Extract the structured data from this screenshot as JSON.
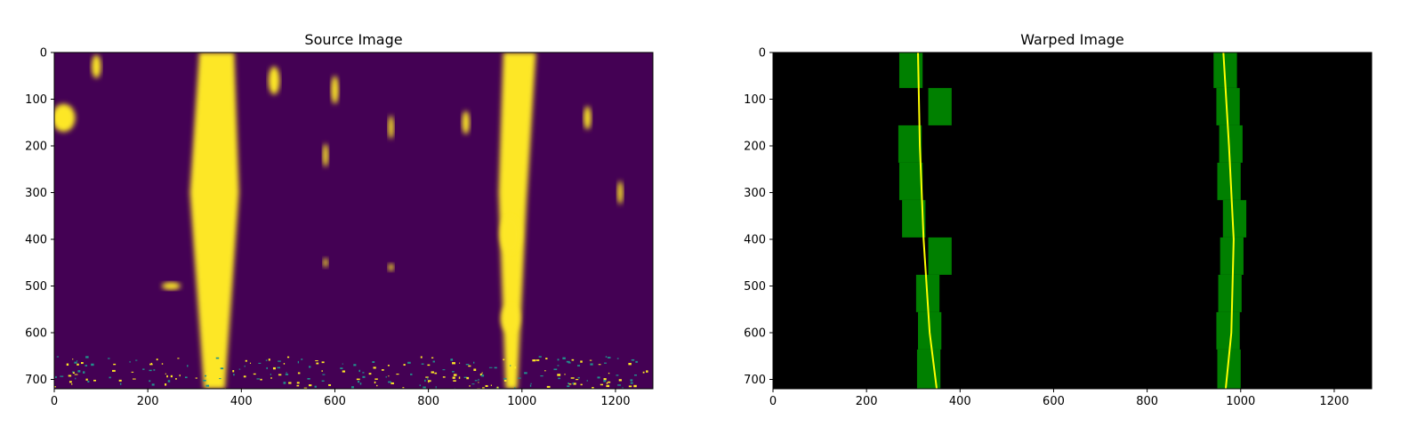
{
  "figure": {
    "background": "#ffffff"
  },
  "chart_data": [
    {
      "type": "heatmap",
      "title": "Source Image",
      "xlabel": "",
      "ylabel": "",
      "xlim": [
        0,
        1280
      ],
      "ylim": [
        720,
        0
      ],
      "xticks": [
        0,
        200,
        400,
        600,
        800,
        1000,
        1200
      ],
      "yticks": [
        0,
        100,
        200,
        300,
        400,
        500,
        600,
        700
      ],
      "colormap": [
        "#440154",
        "#fde725"
      ],
      "background_color": "#440154",
      "feature_color": "#fde725",
      "features": {
        "left_lane_band": [
          [
            310,
            0
          ],
          [
            385,
            0
          ],
          [
            395,
            300
          ],
          [
            365,
            720
          ],
          [
            320,
            720
          ],
          [
            290,
            300
          ]
        ],
        "right_lane_band": [
          [
            960,
            0
          ],
          [
            1030,
            0
          ],
          [
            1010,
            320
          ],
          [
            990,
            720
          ],
          [
            965,
            720
          ],
          [
            950,
            300
          ]
        ],
        "blobs": [
          {
            "x": 20,
            "y": 140,
            "rx": 25,
            "ry": 30
          },
          {
            "x": 90,
            "y": 30,
            "rx": 10,
            "ry": 25
          },
          {
            "x": 470,
            "y": 60,
            "rx": 12,
            "ry": 30
          },
          {
            "x": 600,
            "y": 80,
            "rx": 8,
            "ry": 30
          },
          {
            "x": 720,
            "y": 160,
            "rx": 6,
            "ry": 25
          },
          {
            "x": 880,
            "y": 150,
            "rx": 8,
            "ry": 25
          },
          {
            "x": 975,
            "y": 390,
            "rx": 22,
            "ry": 40
          },
          {
            "x": 975,
            "y": 570,
            "rx": 20,
            "ry": 30
          },
          {
            "x": 580,
            "y": 220,
            "rx": 6,
            "ry": 25
          },
          {
            "x": 1140,
            "y": 140,
            "rx": 8,
            "ry": 25
          },
          {
            "x": 250,
            "y": 500,
            "rx": 20,
            "ry": 8
          },
          {
            "x": 720,
            "y": 460,
            "rx": 6,
            "ry": 8
          },
          {
            "x": 580,
            "y": 450,
            "rx": 5,
            "ry": 10
          },
          {
            "x": 1210,
            "y": 300,
            "rx": 6,
            "ry": 25
          }
        ],
        "noise_band_y": [
          650,
          720
        ]
      }
    },
    {
      "type": "heatmap",
      "title": "Warped Image",
      "xlabel": "",
      "ylabel": "",
      "xlim": [
        0,
        1280
      ],
      "ylim": [
        720,
        0
      ],
      "xticks": [
        0,
        200,
        400,
        600,
        800,
        1000,
        1200
      ],
      "yticks": [
        0,
        100,
        200,
        300,
        400,
        500,
        600,
        700
      ],
      "background_color": "#000000",
      "window_color": "#008000",
      "fit_color": "#ffff00",
      "sliding_windows": [
        {
          "x0": 270,
          "x1": 320,
          "y0": 0,
          "y1": 76
        },
        {
          "x0": 332,
          "x1": 382,
          "y0": 76,
          "y1": 156
        },
        {
          "x0": 268,
          "x1": 318,
          "y0": 156,
          "y1": 236
        },
        {
          "x0": 270,
          "x1": 320,
          "y0": 236,
          "y1": 316
        },
        {
          "x0": 276,
          "x1": 326,
          "y0": 316,
          "y1": 396
        },
        {
          "x0": 332,
          "x1": 382,
          "y0": 396,
          "y1": 476
        },
        {
          "x0": 306,
          "x1": 356,
          "y0": 476,
          "y1": 556
        },
        {
          "x0": 310,
          "x1": 360,
          "y0": 556,
          "y1": 636
        },
        {
          "x0": 308,
          "x1": 358,
          "y0": 636,
          "y1": 720
        },
        {
          "x0": 942,
          "x1": 992,
          "y0": 0,
          "y1": 76
        },
        {
          "x0": 948,
          "x1": 998,
          "y0": 76,
          "y1": 156
        },
        {
          "x0": 954,
          "x1": 1004,
          "y0": 156,
          "y1": 236
        },
        {
          "x0": 950,
          "x1": 1000,
          "y0": 236,
          "y1": 316
        },
        {
          "x0": 962,
          "x1": 1012,
          "y0": 316,
          "y1": 396
        },
        {
          "x0": 956,
          "x1": 1006,
          "y0": 396,
          "y1": 476
        },
        {
          "x0": 952,
          "x1": 1002,
          "y0": 476,
          "y1": 556
        },
        {
          "x0": 948,
          "x1": 998,
          "y0": 556,
          "y1": 636
        },
        {
          "x0": 950,
          "x1": 1000,
          "y0": 636,
          "y1": 720
        }
      ],
      "series": [
        {
          "x": [
            310,
            314,
            322,
            335,
            350
          ],
          "y": [
            0,
            200,
            400,
            600,
            720
          ]
        },
        {
          "x": [
            963,
            975,
            985,
            980,
            968
          ],
          "y": [
            0,
            200,
            400,
            600,
            720
          ]
        }
      ]
    }
  ]
}
